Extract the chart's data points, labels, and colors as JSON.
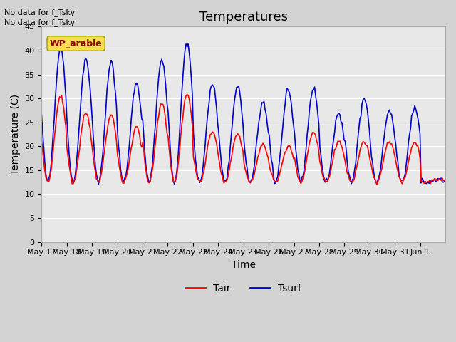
{
  "title": "Temperatures",
  "xlabel": "Time",
  "ylabel": "Temperature (C)",
  "note_lines": [
    "No data for f_Tsky",
    "No data for f_Tsky"
  ],
  "site_label": "WP_arable",
  "ylim": [
    0,
    45
  ],
  "yticks": [
    0,
    5,
    10,
    15,
    20,
    25,
    30,
    35,
    40,
    45
  ],
  "x_tick_labels": [
    "May 17",
    "May 18",
    "May 19",
    "May 20",
    "May 21",
    "May 22",
    "May 23",
    "May 24",
    "May 25",
    "May 26",
    "May 27",
    "May 28",
    "May 29",
    "May 30",
    "May 31",
    "Jun 1"
  ],
  "color_tair": "#ff0000",
  "color_tsurf": "#0000cc",
  "bg_color": "#d3d3d3",
  "plot_bg_color": "#e8e8e8",
  "legend_tair": "Tair",
  "legend_tsurf": "Tsurf",
  "title_fontsize": 13,
  "label_fontsize": 10,
  "tick_fontsize": 8,
  "note_fontsize": 8,
  "site_label_fontsize": 9,
  "day_peaks_surf": [
    40.5,
    38.0,
    37.5,
    33.0,
    38.0,
    41.5,
    33.0,
    32.5,
    29.0,
    32.0,
    32.0,
    27.0,
    30.0,
    27.5,
    28.0,
    13.0
  ],
  "day_peaks_air": [
    30.5,
    27.0,
    26.5,
    24.0,
    29.0,
    31.0,
    23.0,
    22.5,
    20.5,
    20.0,
    23.0,
    21.0,
    21.0,
    21.0,
    21.0,
    13.0
  ],
  "t_min_s": 12.5,
  "t_min_a": 12.5
}
